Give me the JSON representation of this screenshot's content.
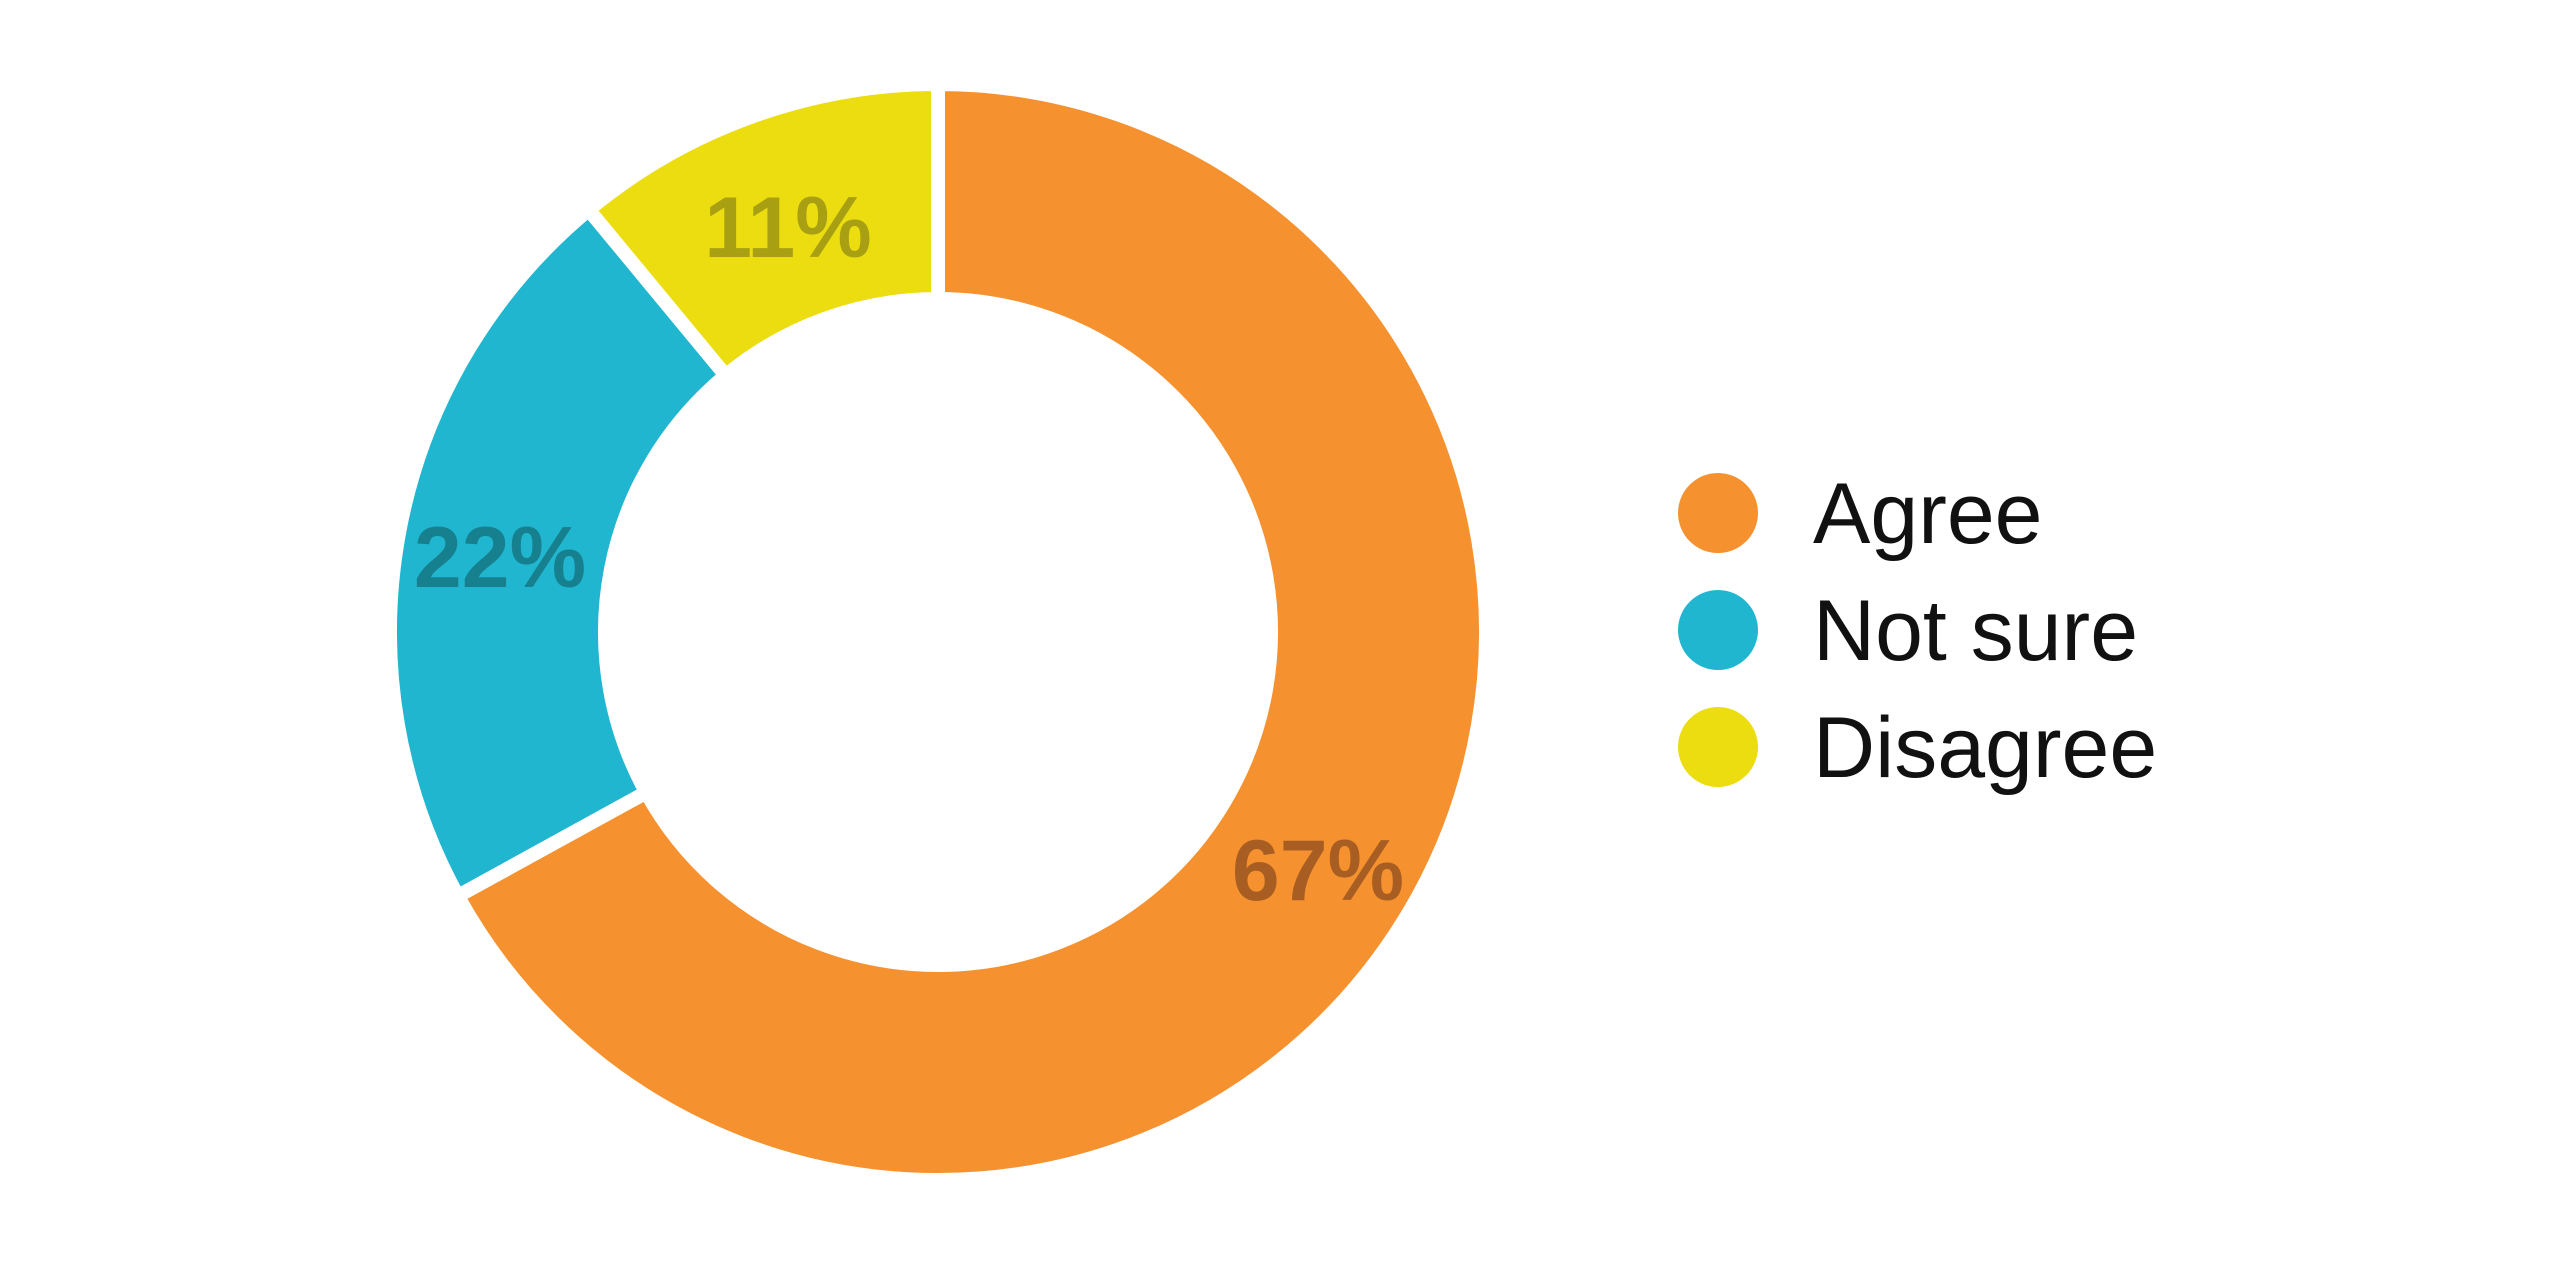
{
  "chart_data": {
    "type": "pie",
    "variant": "donut",
    "title": "",
    "categories": [
      "Agree",
      "Not sure",
      "Disagree"
    ],
    "values": [
      67,
      22,
      11
    ],
    "unit": "%",
    "data_labels": [
      "67%",
      "22%",
      "11%"
    ],
    "colors": [
      "#F5912E",
      "#21B6D0",
      "#EBDD10"
    ],
    "label_colors": [
      "#A85E22",
      "#16808F",
      "#A8A012"
    ],
    "legend": {
      "placement": "right",
      "entries": [
        "Agree",
        "Not sure",
        "Disagree"
      ]
    },
    "start_angle_deg": 0,
    "direction": "clockwise"
  }
}
